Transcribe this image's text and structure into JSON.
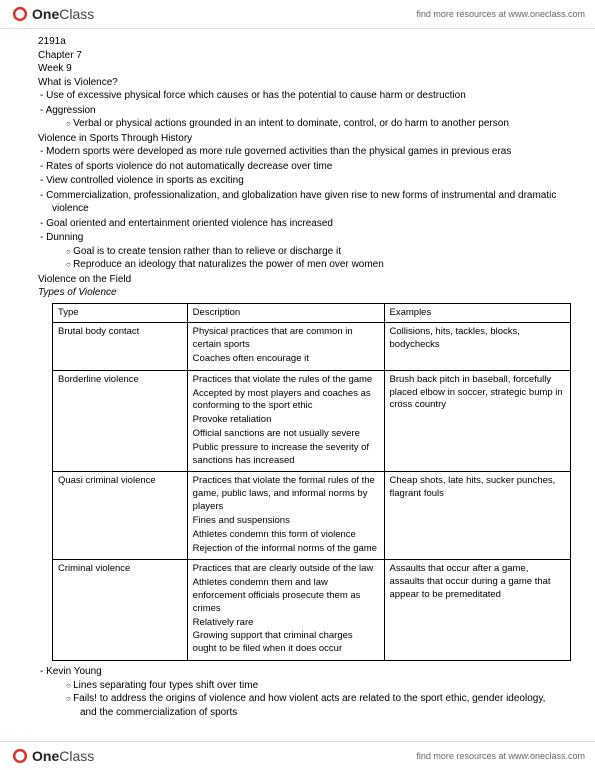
{
  "header": {
    "logo_bold": "One",
    "logo_light": "Class",
    "link": "find more resources at www.oneclass.com"
  },
  "meta": {
    "course": "2191a",
    "chapter": "Chapter 7",
    "week": "Week 9"
  },
  "sec1": {
    "title": "What is Violence?",
    "b1": "Use of excessive physical force which causes or has the potential to cause harm or destruction",
    "b2": "Aggression",
    "b2a": "Verbal or physical actions grounded in an intent to dominate, control, or do harm to another person"
  },
  "sec2": {
    "title": "Violence in Sports Through History",
    "b1": "Modern sports were developed as more rule governed activities than the physical games in previous eras",
    "b2": "Rates of sports violence do not automatically decrease over time",
    "b3": "View controlled violence in sports as exciting",
    "b4": "Commercialization, professionalization, and globalization have given rise to new forms of instrumental and dramatic violence",
    "b5": "Goal oriented and entertainment oriented violence has increased",
    "b6": "Dunning",
    "b6a": "Goal is to create tension rather than to relieve or discharge it",
    "b6b": "Reproduce an ideology that naturalizes the power of men over women"
  },
  "sec3": {
    "title": "Violence on the Field",
    "subtitle": "Types of Violence"
  },
  "table": {
    "headers": {
      "c0": "Type",
      "c1": "Description",
      "c2": "Examples"
    },
    "rows": [
      {
        "type": "Brutal body contact",
        "desc": [
          "Physical practices that are common in certain sports",
          "Coaches often encourage it"
        ],
        "ex": [
          "Collisions, hits, tackles, blocks, bodychecks"
        ]
      },
      {
        "type": "Borderline violence",
        "desc": [
          "Practices that violate the rules of the game",
          "Accepted by most players and coaches as conforming to the sport ethic",
          "Provoke retaliation",
          "Official sanctions are not usually severe",
          "Public pressure to increase the severity of sanctions has increased"
        ],
        "ex": [
          "Brush back pitch in baseball, forcefully placed elbow in soccer, strategic bump in cross country"
        ]
      },
      {
        "type": "Quasi criminal violence",
        "desc": [
          "Practices that violate the formal rules of the game, public laws, and informal norms by players",
          "Fines and suspensions",
          "Athletes condemn this form of violence",
          "Rejection of the informal norms of the game"
        ],
        "ex": [
          "Cheap shots, late hits, sucker punches, flagrant fouls"
        ]
      },
      {
        "type": "Criminal violence",
        "desc": [
          "Practices that are clearly outside of the law",
          "Athletes condemn them and law enforcement officials prosecute them as crimes",
          "Relatively rare",
          "Growing support that criminal charges ought to be filed when it does occur"
        ],
        "ex": [
          "Assaults that occur after a game, assaults that occur during a game that appear to be premeditated"
        ]
      }
    ]
  },
  "sec4": {
    "b1": "Kevin Young",
    "b1a": "Lines separating four types shift over time",
    "b1b": "Fails! to address the origins of violence and how violent acts are related to the sport ethic, gender ideology, and the commercialization of sports"
  },
  "footer": {
    "link": "find more resources at www.oneclass.com"
  },
  "colors": {
    "logo": "#d9362e"
  }
}
